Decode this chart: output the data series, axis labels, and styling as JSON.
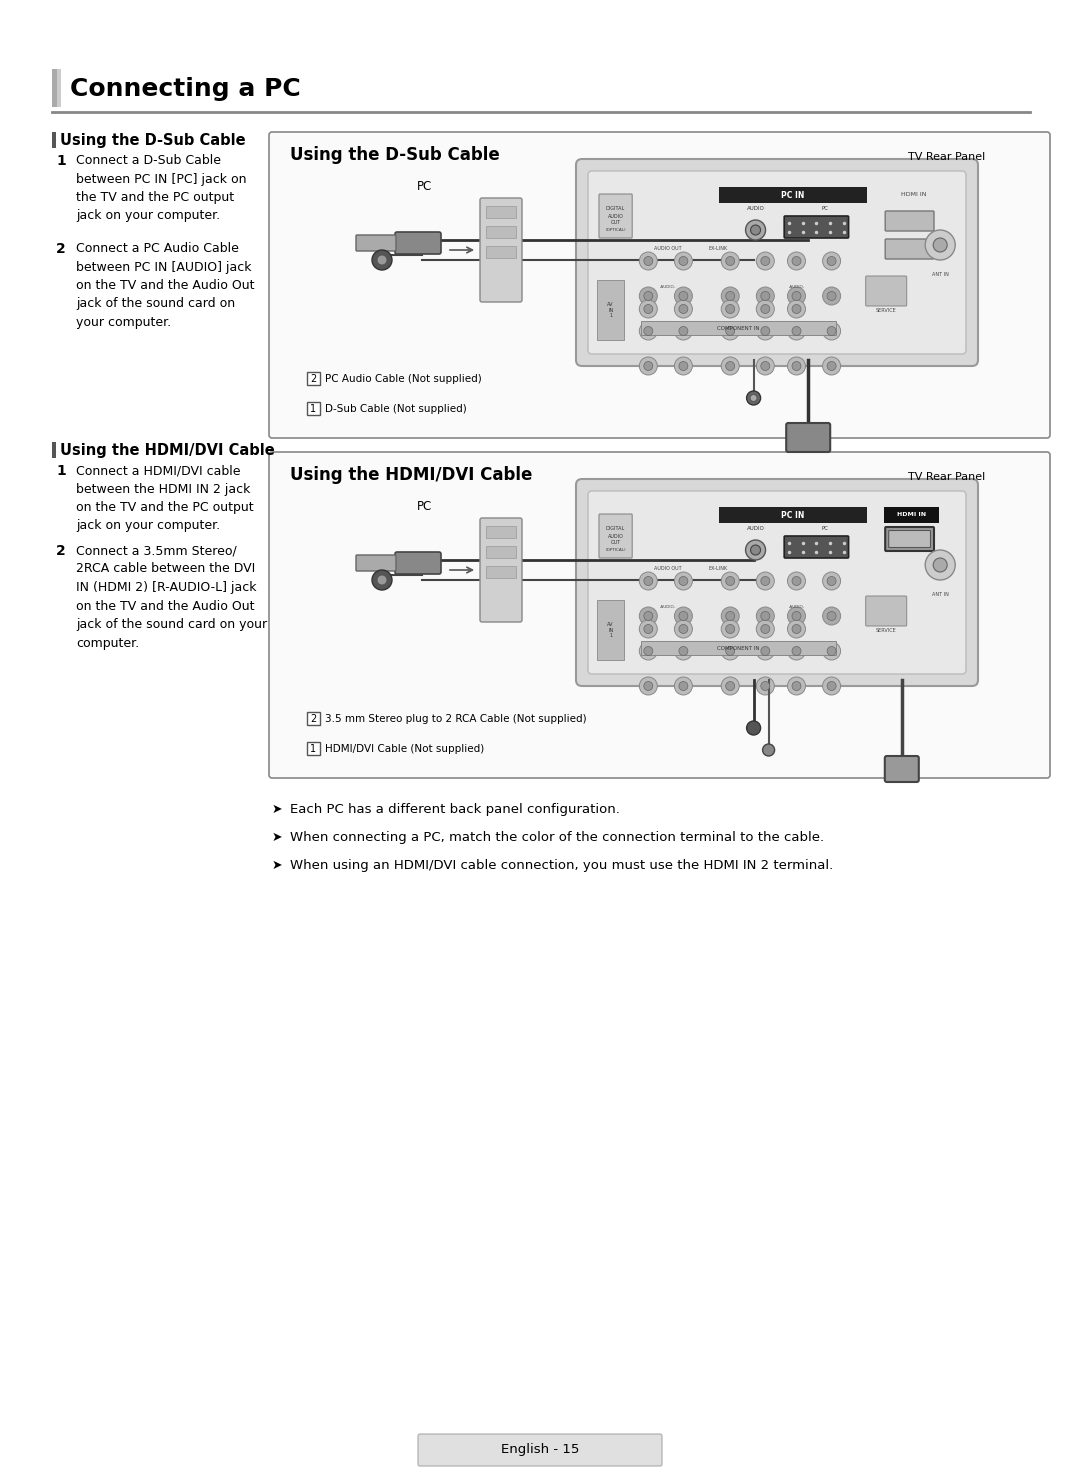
{
  "bg_color": "#ffffff",
  "page_title": "Connecting a PC",
  "title_font_size": 18,
  "left_bar_color": "#888888",
  "section_line_color": "#666666",
  "section1_title": "Using the D-Sub Cable",
  "section1_steps": [
    "Connect a D-Sub Cable\nbetween PC IN [PC] jack on\nthe TV and the PC output\njack on your computer.",
    "Connect a PC Audio Cable\nbetween PC IN [AUDIO] jack\non the TV and the Audio Out\njack of the sound card on\nyour computer."
  ],
  "section2_title": "Using the HDMI/DVI Cable",
  "section2_steps": [
    "Connect a HDMI/DVI cable\nbetween the HDMI IN 2 jack\non the TV and the PC output\njack on your computer.",
    "Connect a 3.5mm Stereo/\n2RCA cable between the DVI\nIN (HDMI 2) [R-AUDIO-L] jack\non the TV and the Audio Out\njack of the sound card on your\ncomputer."
  ],
  "diagram1_title": "Using the D-Sub Cable",
  "diagram1_tv_label": "TV Rear Panel",
  "diagram1_pc_label": "PC",
  "diagram1_cable1": "D-Sub Cable (Not supplied)",
  "diagram1_cable2": "PC Audio Cable (Not supplied)",
  "diagram2_title": "Using the HDMI/DVI Cable",
  "diagram2_tv_label": "TV Rear Panel",
  "diagram2_pc_label": "PC",
  "diagram2_cable1": "HDMI/DVI Cable (Not supplied)",
  "diagram2_cable2": "3.5 mm Stereo plug to 2 RCA Cable (Not supplied)",
  "notes": [
    "Each PC has a different back panel configuration.",
    "When connecting a PC, match the color of the connection terminal to the cable.",
    "When using an HDMI/DVI cable connection, you must use the HDMI IN 2 terminal."
  ],
  "footer_text": "English - 15",
  "text_color": "#000000",
  "dark_gray": "#333333",
  "mid_gray": "#666666",
  "box_border": "#888888"
}
